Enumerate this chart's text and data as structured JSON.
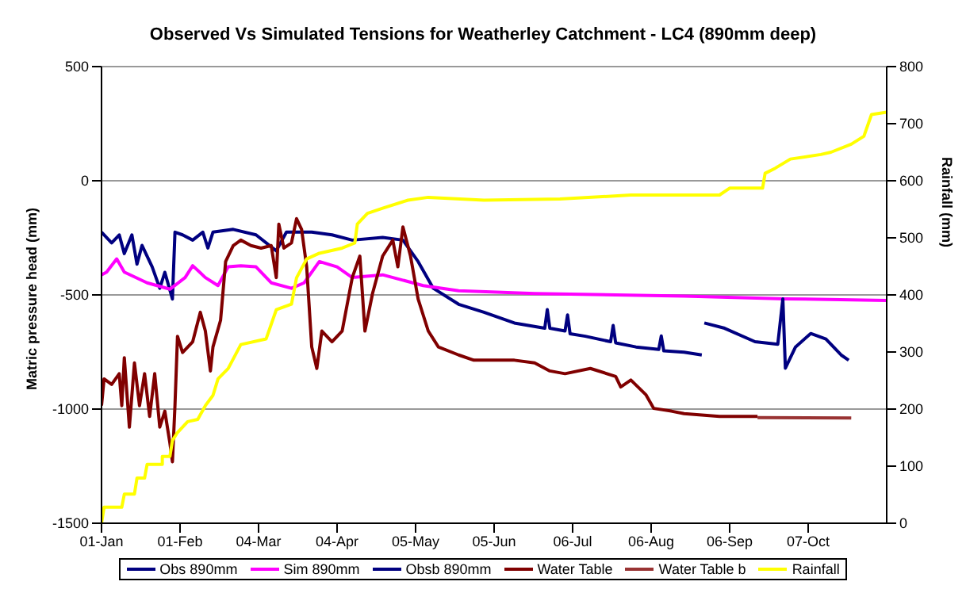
{
  "chart_data": {
    "type": "line",
    "title": "Observed Vs Simulated Tensions for Weatherley Catchment - LC4 (890mm deep)",
    "ylabel": "Matric pressure head (mm)",
    "y2label": "Rainfall (mm)",
    "xlim": [
      "--01-01",
      "--11-07"
    ],
    "xticks": [
      {
        "value": "--01-01",
        "label": "01-Jan"
      },
      {
        "value": "--02-01",
        "label": "01-Feb"
      },
      {
        "value": "--03-04",
        "label": "04-Mar"
      },
      {
        "value": "--04-04",
        "label": "04-Apr"
      },
      {
        "value": "--05-05",
        "label": "05-May"
      },
      {
        "value": "--06-05",
        "label": "05-Jun"
      },
      {
        "value": "--07-06",
        "label": "06-Jul"
      },
      {
        "value": "--08-06",
        "label": "06-Aug"
      },
      {
        "value": "--09-06",
        "label": "06-Sep"
      },
      {
        "value": "--10-07",
        "label": "07-Oct"
      }
    ],
    "ylim": [
      -1500,
      500
    ],
    "yticks": [
      -1500,
      -1000,
      -500,
      0,
      500
    ],
    "y2lim": [
      0,
      800
    ],
    "y2ticks": [
      0,
      100,
      200,
      300,
      400,
      500,
      600,
      700,
      800
    ],
    "grid": "y",
    "legend": "bottom",
    "series": [
      {
        "name": "Obs 890mm",
        "color": "#000080",
        "x": [
          "--01-01",
          "--01-05",
          "--01-08",
          "--01-10",
          "--01-13",
          "--01-15",
          "--01-17",
          "--01-19",
          "--01-21",
          "--01-24",
          "--01-26",
          "--01-29",
          "--01-30",
          "--02-02",
          "--02-06",
          "--02-10",
          "--02-12",
          "--02-14",
          "--02-22",
          "--03-03",
          "--03-11",
          "--03-15",
          "--03-25",
          "--04-02",
          "--04-10",
          "--04-22",
          "--04-30",
          "--05-06",
          "--05-12",
          "--05-22",
          "--06-01",
          "--06-13",
          "--06-25",
          "--06-26",
          "--06-27",
          "--07-03",
          "--07-04",
          "--07-05",
          "--07-11",
          "--07-21",
          "--07-22",
          "--07-23",
          "--07-31",
          "--08-09",
          "--08-10",
          "--08-11",
          "--08-19",
          "--08-26"
        ],
        "values": [
          -225,
          -272,
          -237,
          -319,
          -237,
          -365,
          -283,
          -330,
          -377,
          -471,
          -401,
          -518,
          -225,
          -237,
          -260,
          -225,
          -295,
          -225,
          -213,
          -237,
          -307,
          -225,
          -225,
          -237,
          -260,
          -248,
          -260,
          -354,
          -471,
          -541,
          -576,
          -623,
          -646,
          -564,
          -646,
          -658,
          -588,
          -670,
          -681,
          -705,
          -634,
          -710,
          -728,
          -739,
          -680,
          -745,
          -751,
          -763
        ]
      },
      {
        "name": "Sim 890mm",
        "color": "#ff00ff",
        "x": [
          "--01-01",
          "--01-03",
          "--01-07",
          "--01-10",
          "--01-19",
          "--01-28",
          "--02-03",
          "--02-06",
          "--02-11",
          "--02-16",
          "--02-20",
          "--02-25",
          "--03-03",
          "--03-09",
          "--03-17",
          "--03-22",
          "--03-28",
          "--04-04",
          "--04-10",
          "--04-22",
          "--05-08",
          "--05-22",
          "--06-21",
          "--08-19",
          "--09-28",
          "--11-07"
        ],
        "values": [
          -412,
          -400,
          -342,
          -400,
          -447,
          -475,
          -424,
          -372,
          -424,
          -459,
          -377,
          -372,
          -377,
          -447,
          -471,
          -447,
          -354,
          -377,
          -424,
          -412,
          -459,
          -482,
          -494,
          -505,
          -517,
          -524
        ]
      },
      {
        "name": "Obsb 890mm",
        "color": "#000080",
        "x": [
          "--08-27",
          "--09-04",
          "--09-16",
          "--09-25",
          "--09-27",
          "--09-28",
          "--10-02",
          "--10-08",
          "--10-14",
          "--10-20",
          "--10-23"
        ],
        "values": [
          -623,
          -646,
          -705,
          -716,
          -517,
          -821,
          -728,
          -669,
          -693,
          -763,
          -786
        ]
      },
      {
        "name": "Water Table",
        "color": "#800000",
        "x": [
          "--01-01",
          "--01-02",
          "--01-05",
          "--01-08",
          "--01-09",
          "--01-10",
          "--01-12",
          "--01-14",
          "--01-16",
          "--01-18",
          "--01-20",
          "--01-22",
          "--01-24",
          "--01-26",
          "--01-28",
          "--01-29",
          "--01-30",
          "--01-31",
          "--02-02",
          "--02-06",
          "--02-09",
          "--02-11",
          "--02-13",
          "--02-14",
          "--02-17",
          "--02-19",
          "--02-22",
          "--02-25",
          "--03-01",
          "--03-05",
          "--03-09",
          "--03-11",
          "--03-12",
          "--03-14",
          "--03-17",
          "--03-19",
          "--03-21",
          "--03-23",
          "--03-25",
          "--03-27",
          "--03-29",
          "--04-02",
          "--04-06",
          "--04-10",
          "--04-13",
          "--04-15",
          "--04-18",
          "--04-22",
          "--04-26",
          "--04-28",
          "--04-30",
          "--05-03",
          "--05-06",
          "--05-10",
          "--05-14",
          "--05-22",
          "--05-28",
          "--06-13",
          "--06-21",
          "--06-27",
          "--07-03",
          "--07-13",
          "--07-23",
          "--07-25",
          "--07-29",
          "--08-04",
          "--08-07",
          "--08-14",
          "--08-19",
          "--09-02",
          "--09-17"
        ],
        "values": [
          -985,
          -868,
          -892,
          -845,
          -985,
          -775,
          -1079,
          -798,
          -985,
          -845,
          -1032,
          -845,
          -1079,
          -1009,
          -1149,
          -1231,
          -985,
          -681,
          -752,
          -705,
          -576,
          -658,
          -833,
          -728,
          -611,
          -354,
          -284,
          -260,
          -284,
          -295,
          -284,
          -424,
          -190,
          -295,
          -272,
          -166,
          -213,
          -377,
          -728,
          -822,
          -658,
          -705,
          -658,
          -424,
          -330,
          -658,
          -494,
          -330,
          -260,
          -377,
          -202,
          -330,
          -518,
          -658,
          -728,
          -763,
          -786,
          -786,
          -798,
          -833,
          -845,
          -822,
          -857,
          -903,
          -873,
          -938,
          -997,
          -1009,
          -1020,
          -1032,
          -1032
        ]
      },
      {
        "name": "Water Table b",
        "color": "#993333",
        "x": [
          "--09-17",
          "--10-24"
        ],
        "values": [
          -1037,
          -1039
        ]
      },
      {
        "name": "Rainfall",
        "color": "#ffff00",
        "axis": "y2",
        "x": [
          "--01-01",
          "--01-02",
          "--01-05",
          "--01-09",
          "--01-10",
          "--01-14",
          "--01-15",
          "--01-18",
          "--01-19",
          "--01-25",
          "--01-25",
          "--01-28",
          "--01-29",
          "--01-31",
          "--02-04",
          "--02-08",
          "--02-11",
          "--02-14",
          "--02-16",
          "--02-20",
          "--02-25",
          "--03-07",
          "--03-11",
          "--03-17",
          "--03-19",
          "--03-23",
          "--03-28",
          "--04-06",
          "--04-11",
          "--04-12",
          "--04-16",
          "--04-22",
          "--05-02",
          "--05-10",
          "--06-01",
          "--07-01",
          "--07-29",
          "--09-02",
          "--09-06",
          "--09-19",
          "--09-20",
          "--09-24",
          "--09-30",
          "--10-12",
          "--10-16",
          "--10-24",
          "--10-29",
          "--11-01",
          "--11-07"
        ],
        "values": [
          0,
          28,
          28,
          28,
          51,
          51,
          79,
          79,
          103,
          103,
          117,
          117,
          145,
          159,
          178,
          182,
          206,
          224,
          253,
          271,
          313,
          323,
          374,
          384,
          430,
          463,
          473,
          482,
          491,
          524,
          543,
          552,
          566,
          571,
          566,
          568,
          575,
          575,
          587,
          587,
          613,
          622,
          638,
          646,
          650,
          664,
          678,
          716,
          720
        ]
      }
    ]
  }
}
